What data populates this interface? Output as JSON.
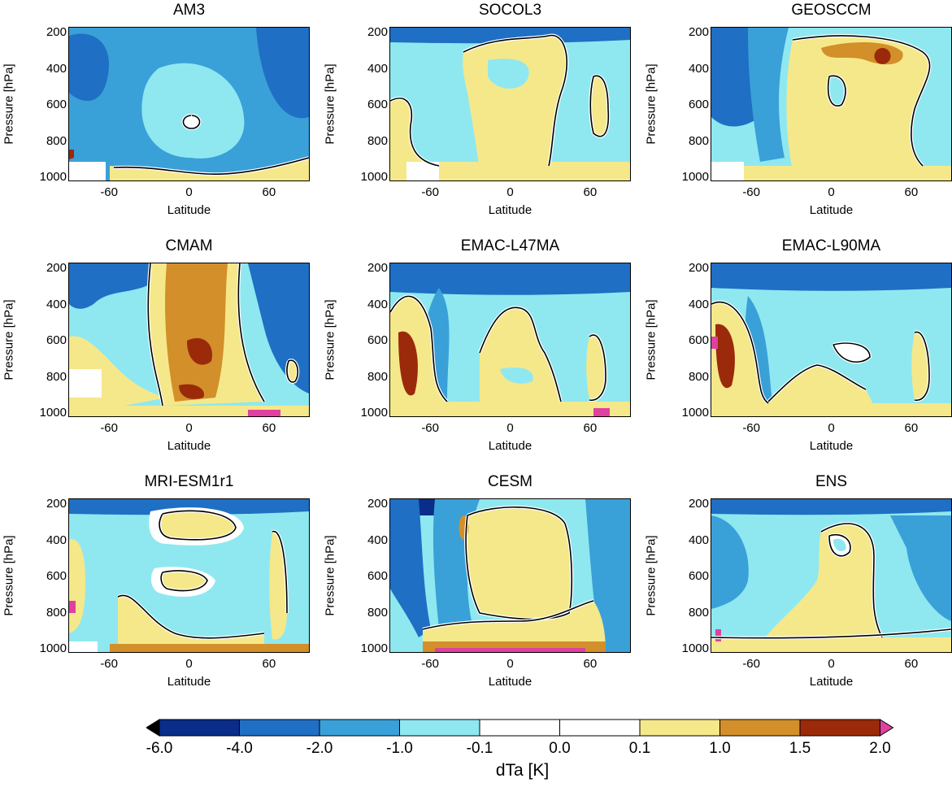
{
  "chart_data": [
    {
      "type": "heatmap",
      "title": "AM3",
      "xlabel": "Latitude",
      "ylabel": "Pressure [hPa]",
      "xlim": [
        -90,
        90
      ],
      "ylim": [
        1000,
        200
      ],
      "xticks": [
        "-60",
        "0",
        "60"
      ],
      "yticks": [
        "200",
        "400",
        "600",
        "800",
        "1000"
      ],
      "dominant_range": "-2.0 to -0.1",
      "notes": "mostly cooling; near-surface warming band"
    },
    {
      "type": "heatmap",
      "title": "SOCOL3",
      "xlabel": "Latitude",
      "ylabel": "Pressure [hPa]",
      "xlim": [
        -90,
        90
      ],
      "ylim": [
        1000,
        200
      ],
      "xticks": [
        "-60",
        "0",
        "60"
      ],
      "yticks": [
        "200",
        "400",
        "600",
        "800",
        "1000"
      ],
      "dominant_range": "-1.0 to 1.0",
      "notes": "warming column near equator"
    },
    {
      "type": "heatmap",
      "title": "GEOSCCM",
      "xlabel": "Latitude",
      "ylabel": "Pressure [hPa]",
      "xlim": [
        -90,
        90
      ],
      "ylim": [
        1000,
        200
      ],
      "xticks": [
        "-60",
        "0",
        "60"
      ],
      "yticks": [
        "200",
        "400",
        "600",
        "800",
        "1000"
      ],
      "dominant_range": "0.1 to 2.0",
      "notes": "tropical warming with upper-level maximum"
    },
    {
      "type": "heatmap",
      "title": "CMAM",
      "xlabel": "Latitude",
      "ylabel": "Pressure [hPa]",
      "xlim": [
        -90,
        90
      ],
      "ylim": [
        1000,
        200
      ],
      "xticks": [
        "-60",
        "0",
        "60"
      ],
      "yticks": [
        "200",
        "400",
        "600",
        "800",
        "1000"
      ],
      "dominant_range": "-2.0 to 2.0",
      "notes": "strong tropical warming core"
    },
    {
      "type": "heatmap",
      "title": "EMAC-L47MA",
      "xlabel": "Latitude",
      "ylabel": "Pressure [hPa]",
      "xlim": [
        -90,
        90
      ],
      "ylim": [
        1000,
        200
      ],
      "xticks": [
        "-60",
        "0",
        "60"
      ],
      "yticks": [
        "200",
        "400",
        "600",
        "800",
        "1000"
      ],
      "dominant_range": "-2.0 to 2.0",
      "notes": "polar southern warming"
    },
    {
      "type": "heatmap",
      "title": "EMAC-L90MA",
      "xlabel": "Latitude",
      "ylabel": "Pressure [hPa]",
      "xlim": [
        -90,
        90
      ],
      "ylim": [
        1000,
        200
      ],
      "xticks": [
        "-60",
        "0",
        "60"
      ],
      "yticks": [
        "200",
        "400",
        "600",
        "800",
        "1000"
      ],
      "dominant_range": "-2.0 to 2.0",
      "notes": "polar southern warming"
    },
    {
      "type": "heatmap",
      "title": "MRI-ESM1r1",
      "xlabel": "Latitude",
      "ylabel": "Pressure [hPa]",
      "xlim": [
        -90,
        90
      ],
      "ylim": [
        1000,
        200
      ],
      "xticks": [
        "-60",
        "0",
        "60"
      ],
      "yticks": [
        "200",
        "400",
        "600",
        "800",
        "1000"
      ],
      "dominant_range": "-1.0 to 1.0",
      "notes": "mid-level warming blobs"
    },
    {
      "type": "heatmap",
      "title": "CESM",
      "xlabel": "Latitude",
      "ylabel": "Pressure [hPa]",
      "xlim": [
        -90,
        90
      ],
      "ylim": [
        1000,
        200
      ],
      "xticks": [
        "-60",
        "0",
        "60"
      ],
      "yticks": [
        "200",
        "400",
        "600",
        "800",
        "1000"
      ],
      "dominant_range": "-6.0 to 2.0",
      "notes": "strong southern cooling, surface warming"
    },
    {
      "type": "heatmap",
      "title": "ENS",
      "xlabel": "Latitude",
      "ylabel": "Pressure [hPa]",
      "xlim": [
        -90,
        90
      ],
      "ylim": [
        1000,
        200
      ],
      "xticks": [
        "-60",
        "0",
        "60"
      ],
      "yticks": [
        "200",
        "400",
        "600",
        "800",
        "1000"
      ],
      "dominant_range": "-1.0 to 1.0",
      "notes": "ensemble mean"
    }
  ],
  "colorbar": {
    "label": "dTa [K]",
    "ticks": [
      "-6.0",
      "-4.0",
      "-2.0",
      "-1.0",
      "-0.1",
      "0.0",
      "0.1",
      "1.0",
      "1.5",
      "2.0"
    ],
    "colors": [
      "#0a2d8a",
      "#1f6fc4",
      "#3aa0d8",
      "#8fe8f0",
      "#ffffff",
      "#ffffff",
      "#f5e88a",
      "#d38f2a",
      "#9a2a0a"
    ],
    "under_color": "#000000",
    "over_color": "#e040a0"
  },
  "colors": {
    "deep_blue": "#0a2d8a",
    "blue": "#1f6fc4",
    "mid_blue": "#3aa0d8",
    "cyan": "#8fe8f0",
    "white": "#ffffff",
    "yellow": "#f5e88a",
    "orange": "#d38f2a",
    "red": "#9a2a0a",
    "magenta": "#e040a0",
    "black": "#000000"
  }
}
